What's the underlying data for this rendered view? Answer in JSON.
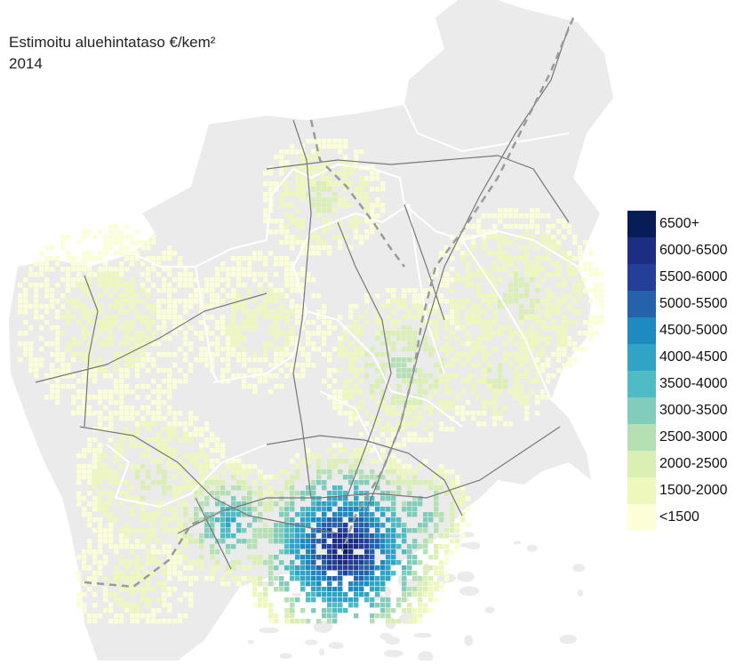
{
  "title": {
    "line1": "Estimoitu aluehintataso €/kem²",
    "line2": "2014"
  },
  "legend": {
    "items": [
      {
        "label": "6500+",
        "color": "#081d58"
      },
      {
        "label": "6000-6500",
        "color": "#1c2d83"
      },
      {
        "label": "5500-6000",
        "color": "#233f98"
      },
      {
        "label": "5000-5500",
        "color": "#2463ab"
      },
      {
        "label": "4500-5000",
        "color": "#1f8ac0"
      },
      {
        "label": "4000-4500",
        "color": "#2fa4c7"
      },
      {
        "label": "3500-4000",
        "color": "#4fbbc4"
      },
      {
        "label": "3000-3500",
        "color": "#82ccbb"
      },
      {
        "label": "2500-3000",
        "color": "#b5e0b4"
      },
      {
        "label": "2000-2500",
        "color": "#d9efb3"
      },
      {
        "label": "1500-2000",
        "color": "#eef8bd"
      },
      {
        "label": "<1500",
        "color": "#fcfed8"
      }
    ]
  },
  "colors": {
    "land": "#ebebeb",
    "boundary": "#ffffff",
    "road": "#777777",
    "railway": "#9a9a9a"
  }
}
